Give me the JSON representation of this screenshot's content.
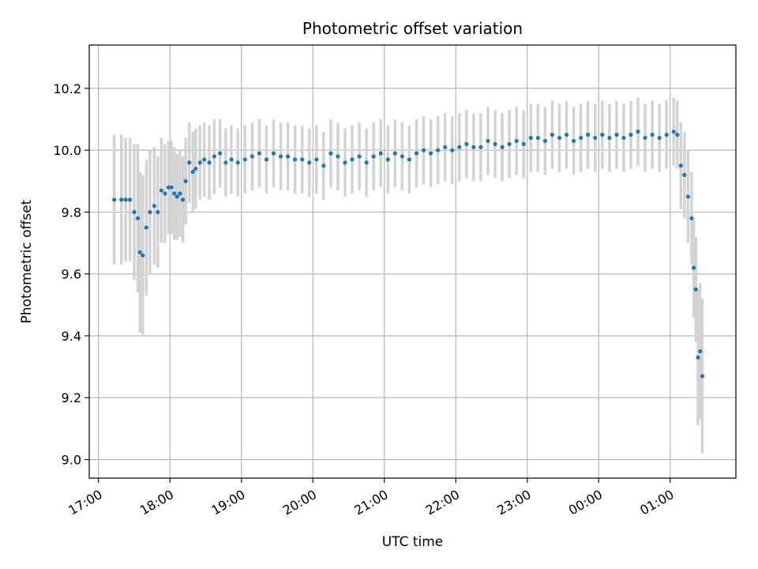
{
  "chart_data": {
    "type": "scatter",
    "title": "Photometric offset variation",
    "xlabel": "UTC time",
    "ylabel": "Photometric offset",
    "x_unit": "hours",
    "xlim": [
      16.87,
      25.92
    ],
    "ylim": [
      8.94,
      10.34
    ],
    "x_ticks": [
      {
        "value": 17,
        "label": "17:00"
      },
      {
        "value": 18,
        "label": "18:00"
      },
      {
        "value": 19,
        "label": "19:00"
      },
      {
        "value": 20,
        "label": "20:00"
      },
      {
        "value": 21,
        "label": "21:00"
      },
      {
        "value": 22,
        "label": "22:00"
      },
      {
        "value": 23,
        "label": "23:00"
      },
      {
        "value": 24,
        "label": "00:00"
      },
      {
        "value": 25,
        "label": "01:00"
      }
    ],
    "y_ticks": [
      {
        "value": 9.0,
        "label": "9.0"
      },
      {
        "value": 9.2,
        "label": "9.2"
      },
      {
        "value": 9.4,
        "label": "9.4"
      },
      {
        "value": 9.6,
        "label": "9.6"
      },
      {
        "value": 9.8,
        "label": "9.8"
      },
      {
        "value": 10.0,
        "label": "10.0"
      },
      {
        "value": 10.2,
        "label": "10.2"
      }
    ],
    "grid": true,
    "colors": {
      "point": "#1f77b4",
      "errorbar": "#d3d3d3",
      "grid": "#b0b0b0"
    },
    "series": [
      {
        "x": [
          17.22,
          17.32,
          17.38,
          17.44,
          17.5,
          17.55,
          17.58,
          17.62,
          17.67,
          17.72,
          17.78,
          17.83,
          17.88,
          17.93,
          17.98,
          18.02,
          18.06,
          18.1,
          18.14,
          18.18,
          18.22,
          18.27,
          18.32,
          18.36,
          18.42,
          18.48,
          18.55,
          18.62,
          18.7,
          18.78,
          18.86,
          18.95,
          19.05,
          19.15,
          19.25,
          19.35,
          19.45,
          19.55,
          19.65,
          19.75,
          19.85,
          19.95,
          20.05,
          20.15,
          20.25,
          20.35,
          20.45,
          20.55,
          20.65,
          20.75,
          20.85,
          20.95,
          21.05,
          21.15,
          21.25,
          21.35,
          21.45,
          21.55,
          21.65,
          21.75,
          21.85,
          21.95,
          22.05,
          22.15,
          22.25,
          22.35,
          22.45,
          22.55,
          22.65,
          22.75,
          22.85,
          22.95,
          23.05,
          23.15,
          23.25,
          23.35,
          23.45,
          23.55,
          23.65,
          23.75,
          23.85,
          23.95,
          24.05,
          24.15,
          24.25,
          24.35,
          24.45,
          24.55,
          24.65,
          24.75,
          24.85,
          24.95,
          25.05,
          25.1,
          25.15,
          25.2,
          25.25,
          25.3,
          25.33,
          25.36,
          25.39,
          25.42,
          25.45
        ],
        "y": [
          9.84,
          9.84,
          9.84,
          9.84,
          9.8,
          9.78,
          9.67,
          9.66,
          9.75,
          9.8,
          9.82,
          9.8,
          9.87,
          9.86,
          9.88,
          9.88,
          9.86,
          9.85,
          9.86,
          9.84,
          9.9,
          9.96,
          9.93,
          9.94,
          9.96,
          9.97,
          9.96,
          9.98,
          9.99,
          9.96,
          9.97,
          9.96,
          9.97,
          9.98,
          9.99,
          9.97,
          9.99,
          9.98,
          9.98,
          9.97,
          9.97,
          9.96,
          9.97,
          9.95,
          9.99,
          9.98,
          9.96,
          9.97,
          9.98,
          9.96,
          9.98,
          9.99,
          9.97,
          9.99,
          9.98,
          9.97,
          9.99,
          10.0,
          9.99,
          10.0,
          10.01,
          10.0,
          10.01,
          10.02,
          10.01,
          10.01,
          10.03,
          10.02,
          10.01,
          10.02,
          10.03,
          10.02,
          10.04,
          10.04,
          10.03,
          10.05,
          10.04,
          10.05,
          10.03,
          10.04,
          10.05,
          10.04,
          10.05,
          10.04,
          10.05,
          10.04,
          10.05,
          10.06,
          10.04,
          10.05,
          10.04,
          10.05,
          10.06,
          10.05,
          9.95,
          9.92,
          9.85,
          9.78,
          9.62,
          9.55,
          9.33,
          9.35,
          9.27
        ],
        "yerr": [
          0.21,
          0.21,
          0.2,
          0.2,
          0.22,
          0.24,
          0.26,
          0.26,
          0.22,
          0.2,
          0.19,
          0.18,
          0.17,
          0.16,
          0.15,
          0.15,
          0.15,
          0.14,
          0.14,
          0.14,
          0.14,
          0.13,
          0.13,
          0.13,
          0.12,
          0.12,
          0.12,
          0.12,
          0.11,
          0.11,
          0.11,
          0.11,
          0.11,
          0.11,
          0.11,
          0.11,
          0.11,
          0.11,
          0.11,
          0.11,
          0.11,
          0.11,
          0.11,
          0.11,
          0.11,
          0.11,
          0.11,
          0.11,
          0.11,
          0.11,
          0.11,
          0.11,
          0.11,
          0.11,
          0.11,
          0.11,
          0.11,
          0.11,
          0.11,
          0.11,
          0.11,
          0.11,
          0.11,
          0.11,
          0.11,
          0.11,
          0.11,
          0.11,
          0.11,
          0.11,
          0.11,
          0.11,
          0.11,
          0.11,
          0.11,
          0.11,
          0.11,
          0.11,
          0.11,
          0.11,
          0.11,
          0.11,
          0.11,
          0.11,
          0.11,
          0.11,
          0.11,
          0.11,
          0.11,
          0.11,
          0.11,
          0.11,
          0.11,
          0.11,
          0.14,
          0.14,
          0.15,
          0.15,
          0.16,
          0.17,
          0.22,
          0.22,
          0.25
        ]
      }
    ]
  }
}
